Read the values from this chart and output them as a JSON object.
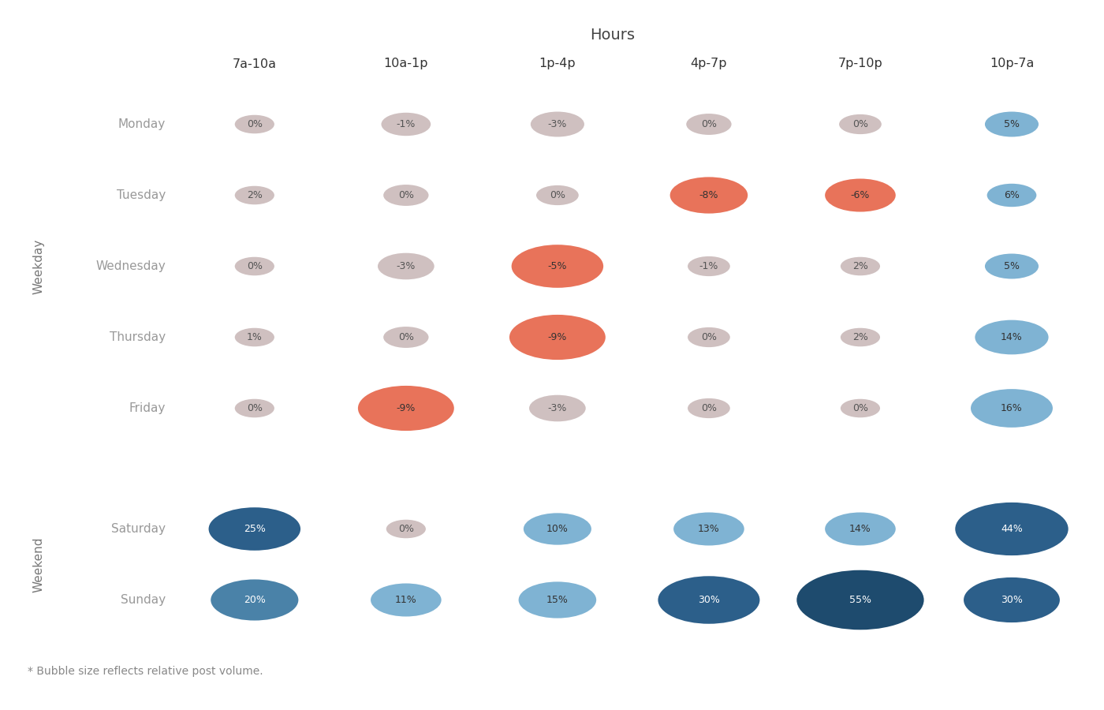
{
  "title": "Hours",
  "hours": [
    "7a-10a",
    "10a-1p",
    "1p-4p",
    "4p-7p",
    "7p-10p",
    "10p-7a"
  ],
  "days": [
    "Monday",
    "Tuesday",
    "Wednesday",
    "Thursday",
    "Friday",
    "Saturday",
    "Sunday"
  ],
  "weekday_label": "Weekday",
  "weekend_label": "Weekend",
  "footnote": "* Bubble size reflects relative post volume.",
  "values": [
    [
      0,
      -1,
      -3,
      0,
      0,
      5
    ],
    [
      2,
      0,
      0,
      -8,
      -6,
      6
    ],
    [
      0,
      -3,
      -5,
      -1,
      2,
      5
    ],
    [
      1,
      0,
      -9,
      0,
      2,
      14
    ],
    [
      0,
      -9,
      -3,
      0,
      0,
      16
    ],
    [
      25,
      0,
      10,
      13,
      14,
      44
    ],
    [
      20,
      11,
      15,
      30,
      55,
      30
    ]
  ],
  "bubble_sizes": [
    [
      28,
      35,
      38,
      32,
      30,
      38
    ],
    [
      28,
      32,
      30,
      55,
      50,
      35
    ],
    [
      28,
      40,
      65,
      30,
      28,
      38
    ],
    [
      28,
      32,
      68,
      30,
      28,
      52
    ],
    [
      28,
      68,
      40,
      30,
      28,
      58
    ],
    [
      65,
      28,
      48,
      50,
      50,
      80
    ],
    [
      62,
      50,
      55,
      72,
      90,
      68
    ]
  ],
  "colors": {
    "neutral": "#cfc0c0",
    "red_strong": "#e8735a",
    "red_medium": "#e8735a",
    "blue_light": "#7fb3d3",
    "blue_medium": "#4a82a8",
    "blue_dark": "#2c5f8a",
    "blue_darkest": "#1e4b6e"
  },
  "background_color": "#ffffff",
  "separator_color": "#aaaaaa",
  "header_line_color": "#cccccc"
}
